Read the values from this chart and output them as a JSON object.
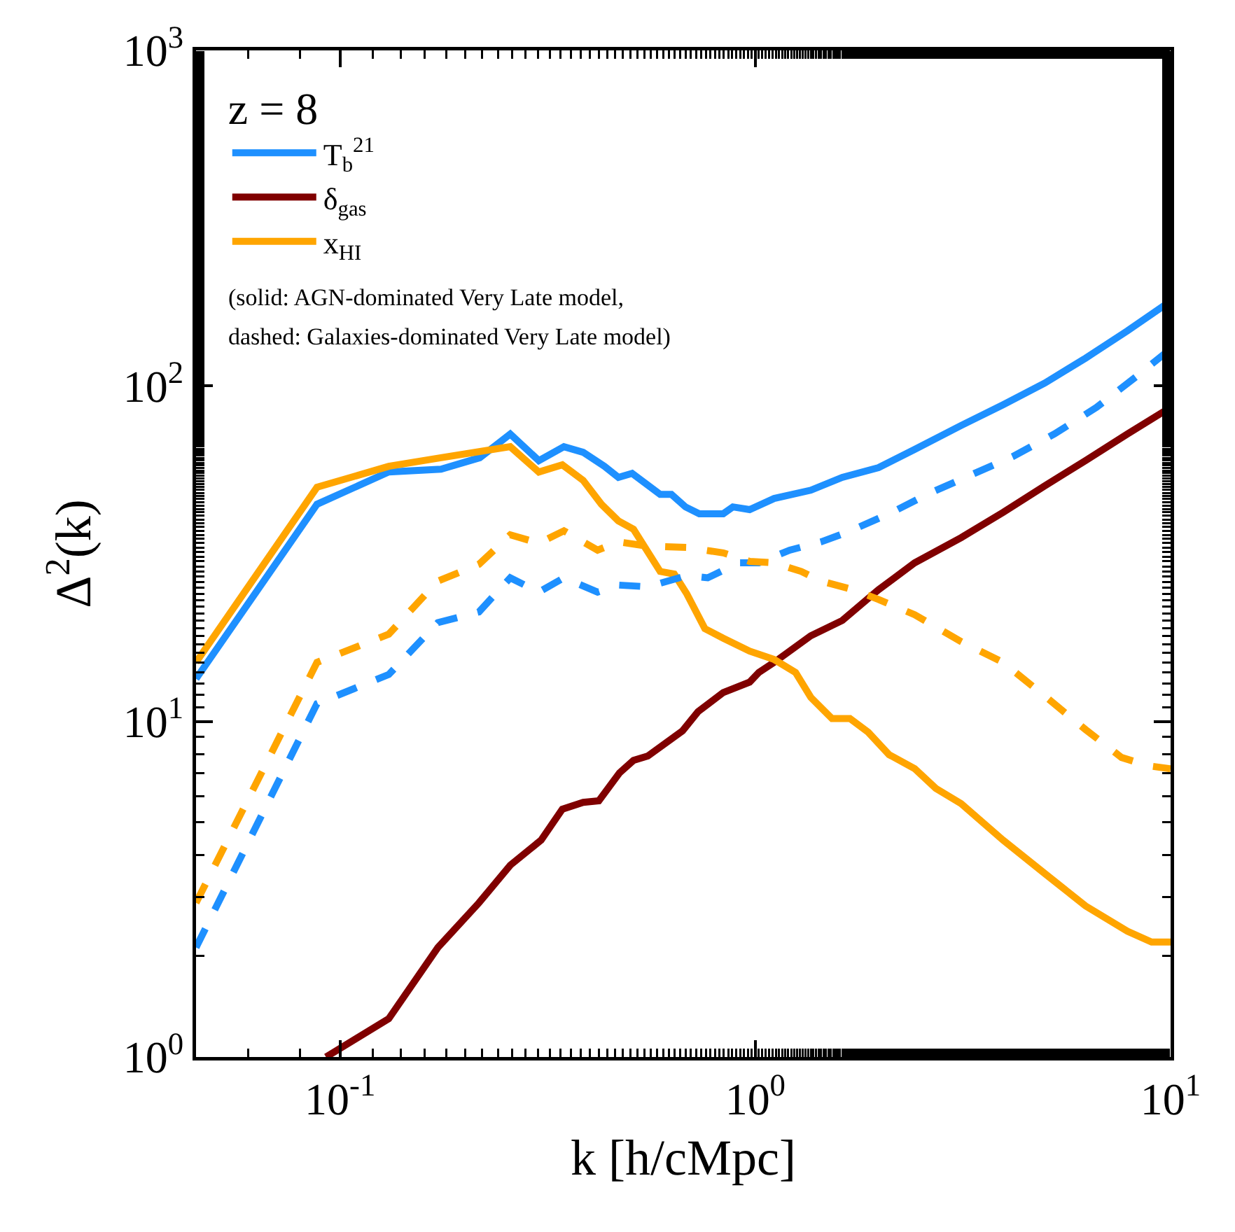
{
  "chart_data": {
    "type": "line",
    "xlabel": "k [h/cMpc]",
    "ylabel": "Δ$^{2}$(k)",
    "legend_title": "z = 8",
    "legend": "top left",
    "log": "xy",
    "grid": false,
    "xlim": [
      0.045,
      10
    ],
    "xticks": [
      {
        "value": 0.1,
        "label": "10$^{-1}$"
      },
      {
        "value": 1,
        "label": "10$^{0}$"
      },
      {
        "value": 10,
        "label": "10$^{1}$"
      }
    ],
    "ylim": [
      1,
      1000
    ],
    "yticks": [
      {
        "value": 1,
        "label": "10$^{0}$"
      },
      {
        "value": 10,
        "label": "10$^{1}$"
      },
      {
        "value": 100,
        "label": "10$^{2}$"
      },
      {
        "value": 1000,
        "label": "10$^{3}$"
      }
    ],
    "annotations": [
      "(solid: AGN-dominated Very Late model,",
      "dashed: Galaxies-dominated Very Late model)"
    ],
    "series": [
      {
        "name": "T$_{b}$$^{21}$",
        "color": "#1e90ff",
        "line_style": "solid",
        "x": [
          0.045,
          0.088,
          0.131,
          0.175,
          0.217,
          0.257,
          0.301,
          0.346,
          0.385,
          0.433,
          0.468,
          0.505,
          0.59,
          0.628,
          0.679,
          0.733,
          0.837,
          0.883,
          0.969,
          1.11,
          1.36,
          1.62,
          1.98,
          2.42,
          3.13,
          3.95,
          4.98,
          6.24,
          7.87,
          10
        ],
        "values": [
          13.4,
          44.4,
          55.4,
          56.5,
          61.1,
          71.9,
          59.9,
          65.9,
          63.4,
          57.6,
          53.4,
          54.9,
          47.5,
          47.5,
          43.6,
          41.6,
          41.6,
          43.6,
          42.8,
          46.2,
          48.9,
          53.4,
          57.1,
          64.7,
          76.2,
          87.9,
          102,
          121,
          146,
          179
        ]
      },
      {
        "name": "δ$_{gas}$",
        "color": "#800000",
        "line_style": "solid",
        "x": [
          0.0925,
          0.131,
          0.172,
          0.216,
          0.257,
          0.305,
          0.343,
          0.385,
          0.42,
          0.471,
          0.509,
          0.551,
          0.668,
          0.728,
          0.837,
          0.969,
          1.02,
          1.11,
          1.36,
          1.62,
          1.98,
          2.42,
          3.13,
          3.95,
          4.98,
          6.24,
          7.87,
          10
        ],
        "values": [
          1.0,
          1.3,
          2.12,
          2.88,
          3.73,
          4.43,
          5.48,
          5.74,
          5.8,
          7.03,
          7.66,
          7.89,
          9.38,
          10.7,
          12.2,
          13.1,
          14.0,
          15.0,
          18.0,
          20.0,
          24.7,
          29.7,
          35.3,
          42.0,
          50.4,
          59.9,
          71.9,
          86.3
        ]
      },
      {
        "name": "x$_{HI}$",
        "color": "#ffa500",
        "line_style": "solid",
        "x": [
          0.045,
          0.088,
          0.131,
          0.175,
          0.257,
          0.301,
          0.343,
          0.385,
          0.426,
          0.468,
          0.509,
          0.59,
          0.638,
          0.684,
          0.756,
          0.837,
          0.969,
          1.11,
          1.25,
          1.36,
          1.53,
          1.69,
          1.87,
          2.1,
          2.42,
          2.72,
          3.13,
          3.95,
          4.98,
          6.24,
          7.87,
          9,
          10
        ],
        "values": [
          15.0,
          49.9,
          57.6,
          61.1,
          65.9,
          55.4,
          58.2,
          52.3,
          44.4,
          39.6,
          37.4,
          28.0,
          27.5,
          24.0,
          18.9,
          17.7,
          16.2,
          15.3,
          14.0,
          11.8,
          10.2,
          10.2,
          9.29,
          7.96,
          7.23,
          6.32,
          5.69,
          4.43,
          3.52,
          2.82,
          2.37,
          2.2,
          2.2
        ]
      },
      {
        "color": "#1e90ff",
        "line_style": "dashed",
        "x": [
          0.045,
          0.088,
          0.131,
          0.172,
          0.216,
          0.257,
          0.301,
          0.346,
          0.417,
          0.468,
          0.551,
          0.684,
          0.768,
          0.911,
          1.02,
          1.21,
          1.44,
          1.67,
          2.1,
          2.64,
          3.32,
          4.17,
          5.25,
          6.63,
          8.3,
          10
        ],
        "values": [
          2.12,
          11.3,
          13.8,
          19.7,
          21.2,
          26.8,
          24.3,
          26.8,
          24.3,
          25.5,
          25.2,
          27.2,
          26.8,
          29.7,
          29.7,
          32.4,
          34.3,
          36.7,
          41.6,
          48.0,
          54.4,
          61.6,
          71.9,
          86.3,
          107,
          129
        ]
      },
      {
        "color": "#ffa500",
        "line_style": "dashed",
        "x": [
          0.045,
          0.088,
          0.131,
          0.172,
          0.216,
          0.257,
          0.301,
          0.346,
          0.417,
          0.468,
          0.551,
          0.684,
          0.837,
          0.969,
          1.11,
          1.29,
          1.44,
          1.72,
          1.98,
          2.42,
          3.13,
          3.95,
          4.98,
          6.24,
          7.62,
          8.83,
          10
        ],
        "values": [
          2.88,
          15.0,
          18.2,
          26.2,
          29.4,
          36.0,
          34.0,
          37.0,
          32.4,
          34.3,
          33.3,
          33.0,
          31.8,
          30.0,
          29.7,
          28.0,
          26.2,
          24.7,
          23.1,
          20.8,
          17.3,
          15.0,
          11.9,
          9.46,
          7.81,
          7.38,
          7.23
        ]
      }
    ]
  }
}
